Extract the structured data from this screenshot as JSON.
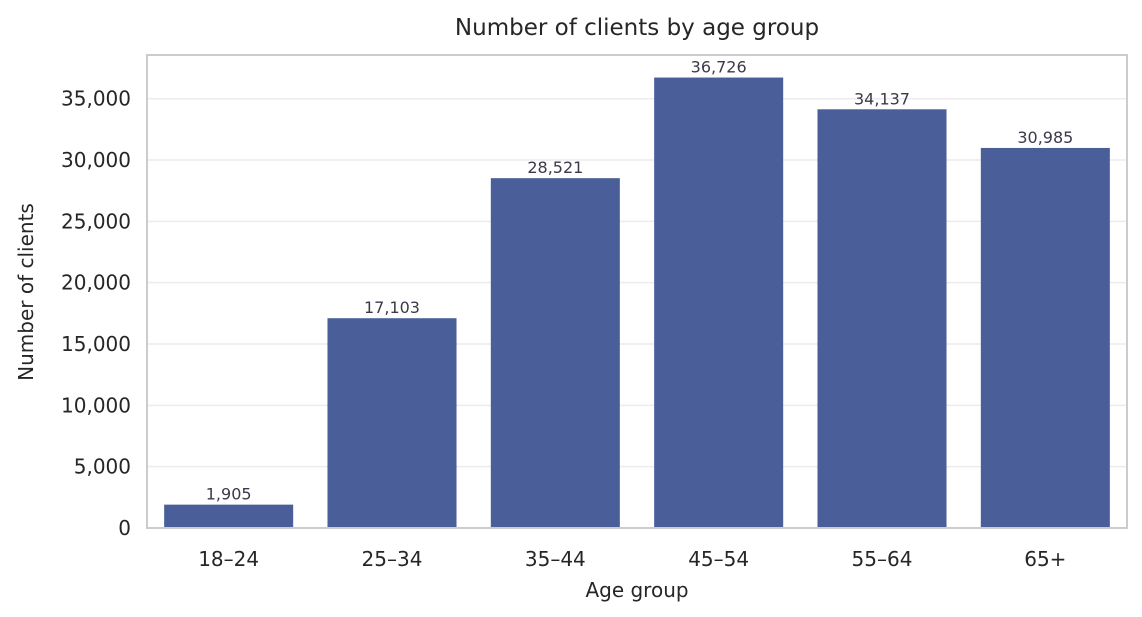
{
  "chart_data": {
    "type": "bar",
    "title": "Number of clients by age group",
    "xlabel": "Age group",
    "ylabel": "Number of clients",
    "categories": [
      "18–24",
      "25–34",
      "35–44",
      "45–54",
      "55–64",
      "65+"
    ],
    "values": [
      1905,
      17103,
      28521,
      36726,
      34137,
      30985
    ],
    "value_labels": [
      "1,905",
      "17,103",
      "28,521",
      "36,726",
      "34,137",
      "30,985"
    ],
    "ylim": [
      0,
      38563
    ],
    "yticks": [
      0,
      5000,
      10000,
      15000,
      20000,
      25000,
      30000,
      35000
    ],
    "ytick_labels": [
      "0",
      "5,000",
      "10,000",
      "15,000",
      "20,000",
      "25,000",
      "30,000",
      "35,000"
    ],
    "grid": true,
    "legend": "none",
    "colors": {
      "bar": "#4a5f99",
      "grid": "#ececec",
      "frame": "#cccccc"
    }
  }
}
